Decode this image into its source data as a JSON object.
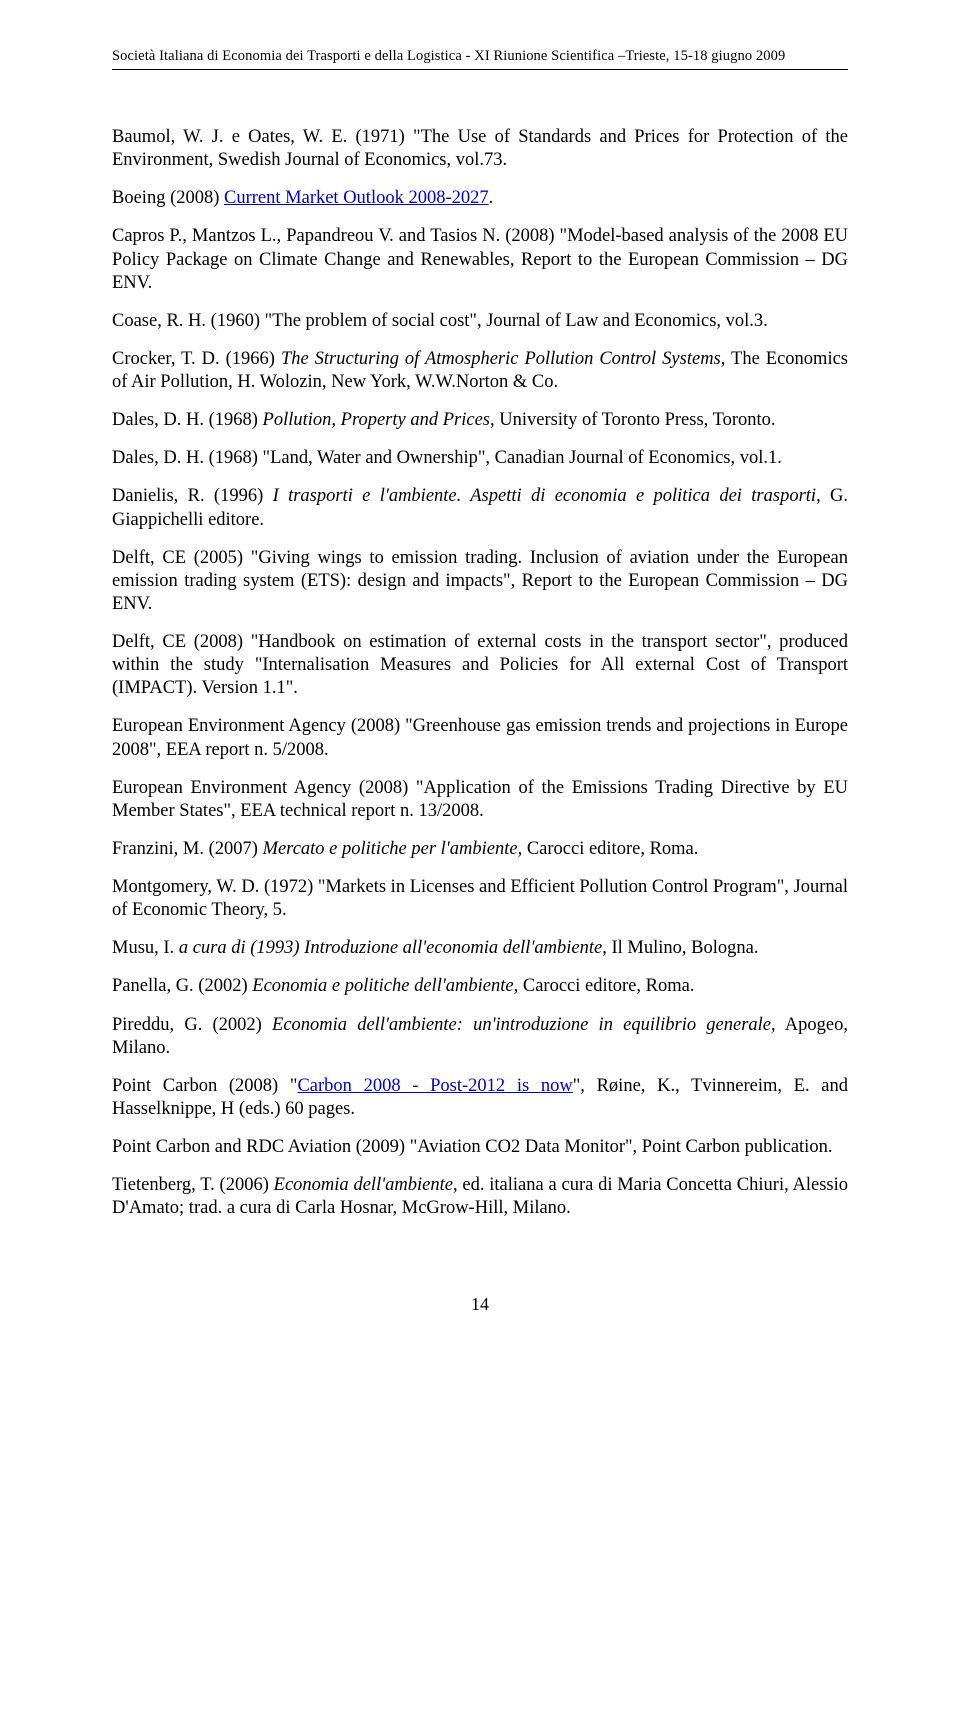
{
  "running_head": "Società Italiana di Economia dei Trasporti e della Logistica - XI Riunione Scientifica –Trieste, 15-18 giugno 2009",
  "references": [
    {
      "pre": "Baumol, W. J. e Oates, W. E. (1971) \"The Use of Standards and Prices for Protection of the Environment, Swedish Journal of Economics, vol.73.",
      "italic": "",
      "post": ""
    },
    {
      "pre": "Boeing (2008) ",
      "link": "Current Market Outlook 2008-2027",
      "post": "."
    },
    {
      "pre": "Capros P., Mantzos L., Papandreou V. and Tasios N. (2008) \"Model-based analysis of the 2008 EU Policy Package on Climate Change and Renewables, Report to the European Commission – DG ENV.",
      "italic": "",
      "post": ""
    },
    {
      "pre": "Coase, R. H. (1960) \"The problem of social cost\", Journal of Law and Economics, vol.3.",
      "italic": "",
      "post": ""
    },
    {
      "pre": "Crocker, T. D. (1966) ",
      "italic": "The Structuring of Atmospheric Pollution Control Systems",
      "post": ", The Economics of Air Pollution, H. Wolozin, New York, W.W.Norton & Co."
    },
    {
      "pre": "Dales, D. H. (1968) ",
      "italic": "Pollution, Property and Prices",
      "post": ", University of Toronto Press, Toronto."
    },
    {
      "pre": "Dales, D. H. (1968) \"Land, Water and Ownership\", Canadian Journal of Economics, vol.1.",
      "italic": "",
      "post": ""
    },
    {
      "pre": "Danielis, R. (1996) ",
      "italic": "I trasporti e l'ambiente. Aspetti di economia e politica dei trasporti",
      "post": ", G. Giappichelli editore."
    },
    {
      "pre": "Delft, CE (2005) \"Giving wings to emission trading. Inclusion of aviation under the European emission trading system (ETS): design and impacts\", Report to the European Commission – DG ENV.",
      "italic": "",
      "post": ""
    },
    {
      "pre": "Delft, CE (2008) \"Handbook on estimation of external costs in the transport sector\", produced within the study \"Internalisation Measures and Policies for All external Cost of Transport (IMPACT). Version 1.1\".",
      "italic": "",
      "post": ""
    },
    {
      "pre": "European Environment Agency (2008) \"Greenhouse gas emission trends and projections in Europe 2008\", EEA report n. 5/2008.",
      "italic": "",
      "post": ""
    },
    {
      "pre": "European Environment Agency (2008) \"Application of the Emissions Trading Directive by EU Member States\", EEA technical report n. 13/2008.",
      "italic": "",
      "post": ""
    },
    {
      "pre": "Franzini, M. (2007) ",
      "italic": "Mercato e politiche per l'ambiente",
      "post": ", Carocci editore, Roma."
    },
    {
      "pre": "Montgomery, W. D. (1972) \"Markets in Licenses and Efficient Pollution Control Program\", Journal of Economic Theory, 5.",
      "italic": "",
      "post": ""
    },
    {
      "pre": "Musu, I. ",
      "italic": "a cura di (1993) Introduzione all'economia dell'ambiente",
      "post": ", Il Mulino, Bologna."
    },
    {
      "pre": "Panella, G. (2002) ",
      "italic": "Economia e politiche dell'ambiente",
      "post": ", Carocci editore, Roma."
    },
    {
      "pre": "Pireddu, G. (2002) ",
      "italic": "Economia dell'ambiente: un'introduzione in equilibrio generale",
      "post": ", Apogeo, Milano."
    },
    {
      "pre": "Point Carbon (2008) \"",
      "link": "Carbon 2008 - Post-2012 is now",
      "post": "\", Røine, K., Tvinnereim, E. and Hasselknippe, H (eds.) 60 pages."
    },
    {
      "pre": "Point Carbon and RDC Aviation (2009) \"Aviation CO2 Data Monitor\", Point Carbon publication.",
      "italic": "",
      "post": ""
    },
    {
      "pre": "Tietenberg, T. (2006) ",
      "italic": "Economia dell'ambiente",
      "post": ", ed. italiana a cura di Maria Concetta Chiuri, Alessio D'Amato; trad. a cura di Carla Hosnar, McGrow-Hill, Milano."
    }
  ],
  "page_number": "14"
}
